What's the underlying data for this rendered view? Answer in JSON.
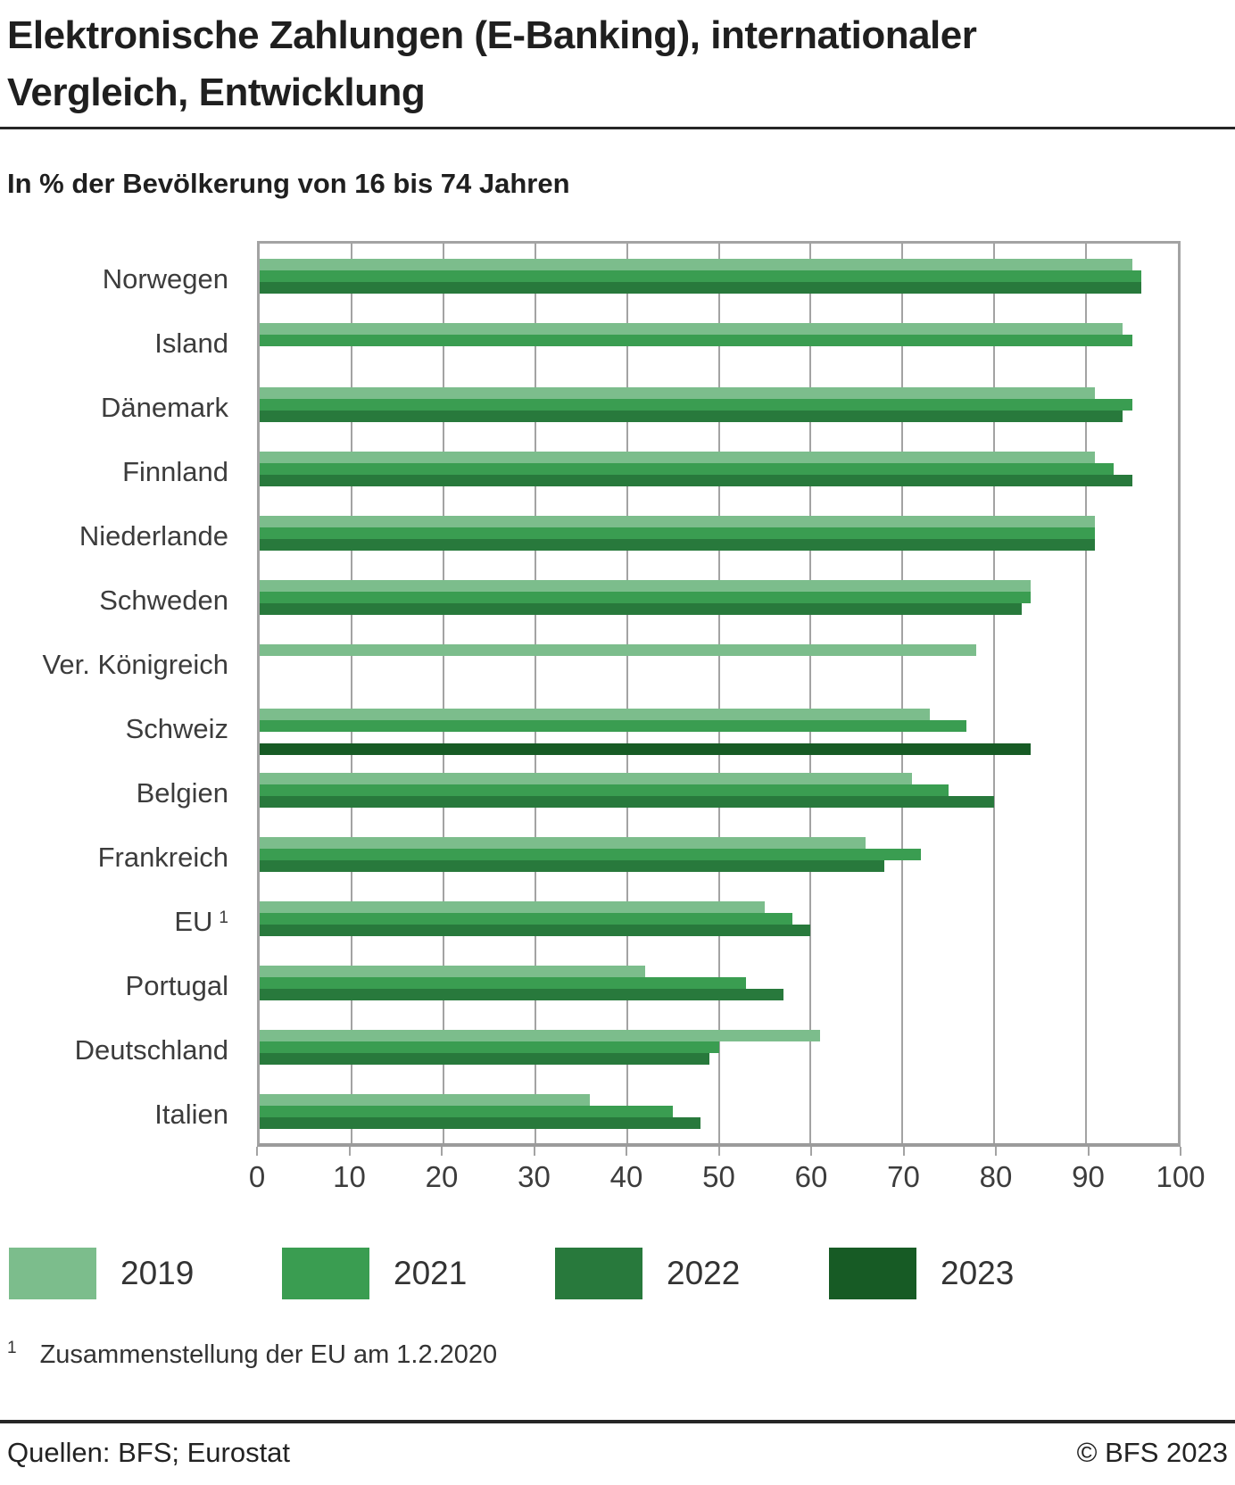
{
  "header": {
    "title_lines": [
      "Elektronische Zahlungen (E-Banking), internationaler",
      "Vergleich, Entwicklung"
    ],
    "subtitle": "In % der Bevölkerung von 16 bis 74 Jahren"
  },
  "chart_data": {
    "type": "bar",
    "orientation": "horizontal",
    "title": "Elektronische Zahlungen (E-Banking), internationaler Vergleich, Entwicklung",
    "unit_label": "In % der Bevölkerung von 16 bis 74 Jahren",
    "xlim": [
      0,
      100
    ],
    "x_ticks": [
      0,
      10,
      20,
      30,
      40,
      50,
      60,
      70,
      80,
      90,
      100
    ],
    "grid": true,
    "legend_position": "bottom",
    "categories": [
      "Norwegen",
      "Island",
      "Dänemark",
      "Finnland",
      "Niederlande",
      "Schweden",
      "Ver. Königreich",
      "Schweiz",
      "Belgien",
      "Frankreich",
      "EU",
      "Portugal",
      "Deutschland",
      "Italien"
    ],
    "category_footnote": {
      "index": 10,
      "marker": "1"
    },
    "series": [
      {
        "name": "2019",
        "color": "#7CBD8C",
        "values": [
          95,
          94,
          91,
          91,
          91,
          84,
          78,
          73,
          71,
          66,
          55,
          42,
          61,
          36
        ]
      },
      {
        "name": "2021",
        "color": "#3A9D51",
        "values": [
          96,
          95,
          95,
          93,
          91,
          84,
          null,
          77,
          75,
          72,
          58,
          53,
          50,
          45
        ]
      },
      {
        "name": "2022",
        "color": "#28793C",
        "values": [
          96,
          null,
          94,
          95,
          91,
          83,
          null,
          null,
          80,
          68,
          60,
          57,
          49,
          48
        ]
      },
      {
        "name": "2023",
        "color": "#175B25",
        "values": [
          null,
          null,
          null,
          null,
          null,
          null,
          null,
          84,
          null,
          null,
          null,
          null,
          null,
          null
        ]
      }
    ]
  },
  "legend": {
    "items": [
      {
        "label": "2019",
        "color": "#7CBD8C"
      },
      {
        "label": "2021",
        "color": "#3A9D51"
      },
      {
        "label": "2022",
        "color": "#28793C"
      },
      {
        "label": "2023",
        "color": "#175B25"
      }
    ]
  },
  "footnote": {
    "marker": "1",
    "text": "Zusammenstellung der EU am 1.2.2020"
  },
  "footer": {
    "left": "Quellen: BFS; Eurostat",
    "right": "© BFS 2023"
  },
  "colors": {
    "grid": "#a3a3a3",
    "axis_text": "#3c3c3c",
    "rule": "#262626"
  }
}
